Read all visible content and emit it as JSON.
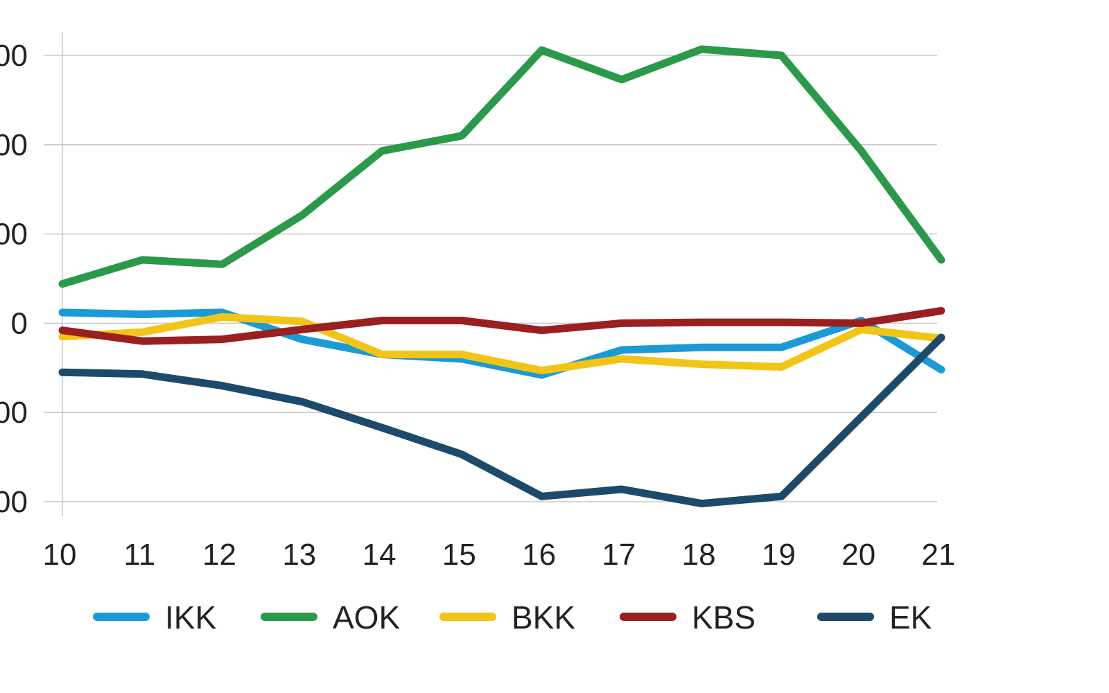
{
  "chart_data": {
    "type": "line",
    "title": "",
    "xlabel": "",
    "ylabel": "",
    "x": [
      "10",
      "11",
      "12",
      "13",
      "14",
      "15",
      "16",
      "17",
      "18",
      "19",
      "20",
      "21"
    ],
    "y_ticks": [
      {
        "value": 300,
        "label": "00"
      },
      {
        "value": 200,
        "label": "00"
      },
      {
        "value": 100,
        "label": "00"
      },
      {
        "value": 0,
        "label": "0"
      },
      {
        "value": -100,
        "label": "00"
      },
      {
        "value": -200,
        "label": "00"
      }
    ],
    "ylim": [
      -200,
      300
    ],
    "grid": true,
    "legend_position": "bottom",
    "series": [
      {
        "name": "IKK",
        "color": "#1a9ad6",
        "values": [
          12,
          10,
          12,
          -18,
          -35,
          -40,
          -58,
          -30,
          -27,
          -27,
          3,
          -52
        ]
      },
      {
        "name": "AOK",
        "color": "#2a9a4a",
        "values": [
          44,
          71,
          66,
          121,
          193,
          210,
          306,
          273,
          307,
          300,
          193,
          71
        ]
      },
      {
        "name": "BKK",
        "color": "#f2c417",
        "values": [
          -15,
          -10,
          7,
          2,
          -35,
          -35,
          -53,
          -40,
          -46,
          -49,
          -7,
          -17
        ]
      },
      {
        "name": "KBS",
        "color": "#9a1f21",
        "values": [
          -8,
          -20,
          -18,
          -7,
          3,
          3,
          -8,
          0,
          1,
          1,
          0,
          14
        ]
      },
      {
        "name": "EK",
        "color": "#1d4a6b",
        "values": [
          -55,
          -57,
          -70,
          -88,
          -117,
          -147,
          -194,
          -186,
          -202,
          -194,
          -105,
          -16
        ]
      }
    ]
  }
}
